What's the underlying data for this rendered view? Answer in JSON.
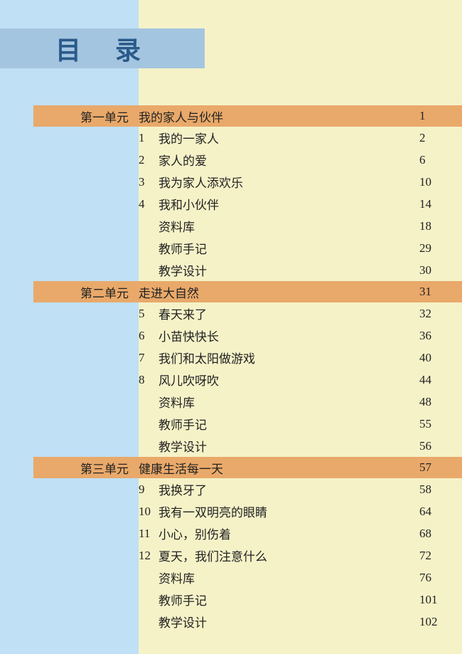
{
  "page_title": "目录",
  "colors": {
    "page_bg": "#f5f2c8",
    "left_band": "#bfe0f5",
    "title_bar": "#a4c5e0",
    "title_text": "#2a5a8a",
    "unit_row_bg": "#e9a96a",
    "text": "#222222"
  },
  "units": [
    {
      "label": "第一单元",
      "title": "我的家人与伙伴",
      "page": "1",
      "items": [
        {
          "num": "1",
          "title": "我的一家人",
          "page": "2"
        },
        {
          "num": "2",
          "title": "家人的爱",
          "page": "6"
        },
        {
          "num": "3",
          "title": "我为家人添欢乐",
          "page": "10"
        },
        {
          "num": "4",
          "title": "我和小伙伴",
          "page": "14"
        },
        {
          "num": "",
          "title": "资料库",
          "page": "18"
        },
        {
          "num": "",
          "title": "教师手记",
          "page": "29"
        },
        {
          "num": "",
          "title": "教学设计",
          "page": "30"
        }
      ]
    },
    {
      "label": "第二单元",
      "title": "走进大自然",
      "page": "31",
      "items": [
        {
          "num": "5",
          "title": "春天来了",
          "page": "32"
        },
        {
          "num": "6",
          "title": "小苗快快长",
          "page": "36"
        },
        {
          "num": "7",
          "title": "我们和太阳做游戏",
          "page": "40"
        },
        {
          "num": "8",
          "title": "风儿吹呀吹",
          "page": "44"
        },
        {
          "num": "",
          "title": "资料库",
          "page": "48"
        },
        {
          "num": "",
          "title": "教师手记",
          "page": "55"
        },
        {
          "num": "",
          "title": "教学设计",
          "page": "56"
        }
      ]
    },
    {
      "label": "第三单元",
      "title": "健康生活每一天",
      "page": "57",
      "items": [
        {
          "num": "9",
          "title": "我换牙了",
          "page": "58"
        },
        {
          "num": "10",
          "title": "我有一双明亮的眼睛",
          "page": "64"
        },
        {
          "num": "11",
          "title": "小心，别伤着",
          "page": "68"
        },
        {
          "num": "12",
          "title": "夏天，我们注意什么",
          "page": "72"
        },
        {
          "num": "",
          "title": "资料库",
          "page": "76"
        },
        {
          "num": "",
          "title": "教师手记",
          "page": "101"
        },
        {
          "num": "",
          "title": "教学设计",
          "page": "102"
        }
      ]
    }
  ]
}
